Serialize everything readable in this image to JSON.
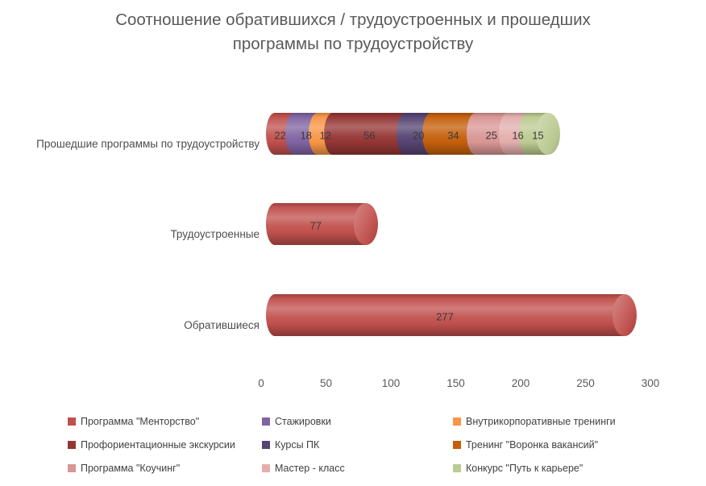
{
  "colors": {
    "background": "#FFFFFF",
    "title_text": "#595959",
    "axis_text": "#595959",
    "data_label_text": "#3A3A3A",
    "legend_text": "#404040"
  },
  "chart_data": {
    "type": "bar",
    "subtype": "horizontal-stacked-cylinder-3d",
    "title": "Соотношение обратившихся / трудоустроенных и прошедших программы по трудоустройству",
    "xlabel": "",
    "ylabel": "",
    "xlim": [
      0,
      300
    ],
    "xticks": [
      0,
      50,
      100,
      150,
      200,
      250,
      300
    ],
    "gridlines": false,
    "legend_position": "bottom",
    "legend_columns": 3,
    "categories": [
      "Прошедшие программы по трудоустройству",
      "Трудоустроенные",
      "Обратившиеся"
    ],
    "series": [
      {
        "name": "Программа \"Менторство\"",
        "color": "#C0504D",
        "values": [
          22,
          77,
          277
        ]
      },
      {
        "name": "Стажировки",
        "color": "#8064A2",
        "values": [
          18,
          0,
          0
        ]
      },
      {
        "name": "Внутрикорпоративные тренинги",
        "color": "#F79646",
        "values": [
          12,
          0,
          0
        ]
      },
      {
        "name": "Профориентационные экскурсии",
        "color": "#943634",
        "values": [
          56,
          0,
          0
        ]
      },
      {
        "name": "Курсы ПК",
        "color": "#564472",
        "values": [
          20,
          0,
          0
        ]
      },
      {
        "name": "Тренинг \"Воронка вакансий\"",
        "color": "#C45F0B",
        "values": [
          34,
          0,
          0
        ]
      },
      {
        "name": "Программа \"Коучинг\"",
        "color": "#D99694",
        "values": [
          25,
          0,
          0
        ]
      },
      {
        "name": "Мастер - класс",
        "color": "#E2AEAC",
        "values": [
          16,
          0,
          0
        ]
      },
      {
        "name": "Конкурс \"Путь к карьере\"",
        "color": "#BCCB92",
        "values": [
          15,
          0,
          0
        ]
      }
    ]
  }
}
